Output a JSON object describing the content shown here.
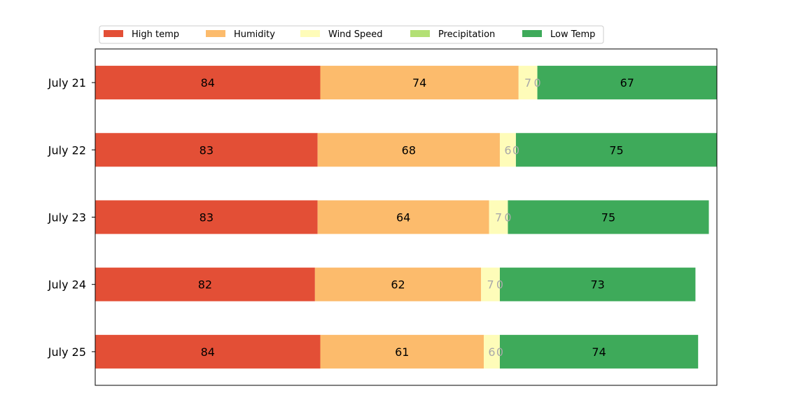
{
  "chart_data": {
    "type": "bar",
    "orientation": "horizontal",
    "stacked": true,
    "categories": [
      "July 21",
      "July 22",
      "July 23",
      "July 24",
      "July 25"
    ],
    "series": [
      {
        "name": "High temp",
        "values": [
          84,
          83,
          83,
          82,
          84
        ],
        "color": "#e34f36"
      },
      {
        "name": "Humidity",
        "values": [
          74,
          68,
          64,
          62,
          61
        ],
        "color": "#fcbb6c"
      },
      {
        "name": "Wind Speed",
        "values": [
          7,
          6,
          7,
          7,
          6
        ],
        "color": "#fefcb9"
      },
      {
        "name": "Precipitation",
        "values": [
          0,
          0,
          0,
          0,
          0
        ],
        "color": "#b3e075"
      },
      {
        "name": "Low Temp",
        "values": [
          67,
          75,
          75,
          73,
          74
        ],
        "color": "#3eaa5a"
      }
    ],
    "xlim": [
      0,
      232
    ],
    "x_axis_visible": false,
    "legend_position": "top-left",
    "label_colors": {
      "dark_background": "#000000",
      "light_background": "#a9a9a9"
    },
    "grid": false
  }
}
